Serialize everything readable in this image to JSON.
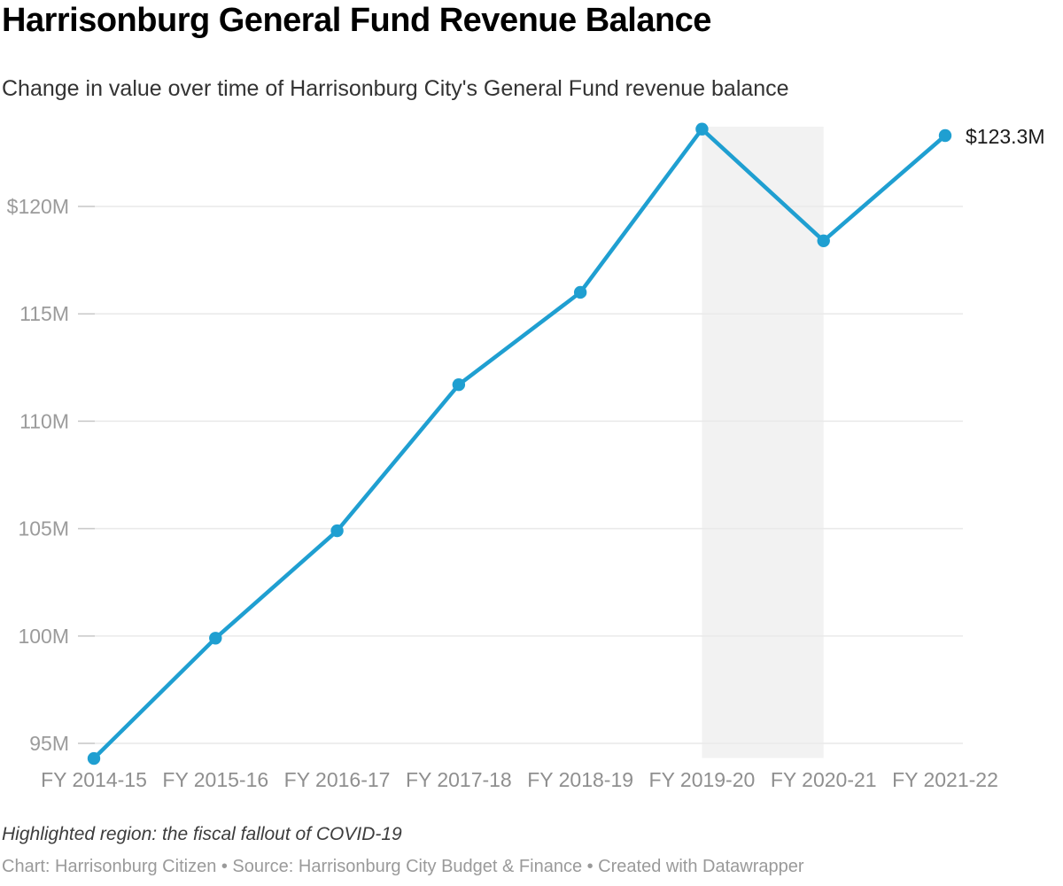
{
  "header": {
    "title": "Harrisonburg General Fund Revenue Balance",
    "subtitle": "Change in value over time of Harrisonburg City's General Fund revenue balance"
  },
  "footer": {
    "note": "Highlighted region: the fiscal fallout of COVID-19",
    "attribution": "Chart: Harrisonburg Citizen • Source: Harrisonburg City Budget & Finance • Created with Datawrapper"
  },
  "chart_data": {
    "type": "line",
    "title": "Harrisonburg General Fund Revenue Balance",
    "subtitle": "Change in value over time of Harrisonburg City's General Fund revenue balance",
    "categories": [
      "FY 2014-15",
      "FY 2015-16",
      "FY 2016-17",
      "FY 2017-18",
      "FY 2018-19",
      "FY 2019-20",
      "FY 2020-21",
      "FY 2021-22"
    ],
    "values": [
      94.3,
      99.9,
      104.9,
      111.7,
      116.0,
      123.6,
      118.4,
      123.3
    ],
    "end_label": "$123.3M",
    "y_ticks": [
      {
        "value": 95,
        "label": "95M"
      },
      {
        "value": 100,
        "label": "100M"
      },
      {
        "value": 105,
        "label": "105M"
      },
      {
        "value": 110,
        "label": "110M"
      },
      {
        "value": 115,
        "label": "115M"
      },
      {
        "value": 120,
        "label": "$120M"
      }
    ],
    "ylim": [
      94.3,
      123.7
    ],
    "grid": "horizontal",
    "legend": "none",
    "highlight_region": {
      "from_category": "FY 2019-20",
      "to_category": "FY 2020-21",
      "meaning": "the fiscal fallout of COVID-19"
    },
    "colors": {
      "line": "#1f9fd1",
      "highlight": "#f2f2f2",
      "grid": "#e9e9e9",
      "grid_tick": "#c9c9c9",
      "y_label": "#9b9b9b",
      "x_label": "#8f8f8f",
      "end_label": "#1a1a1a"
    }
  }
}
